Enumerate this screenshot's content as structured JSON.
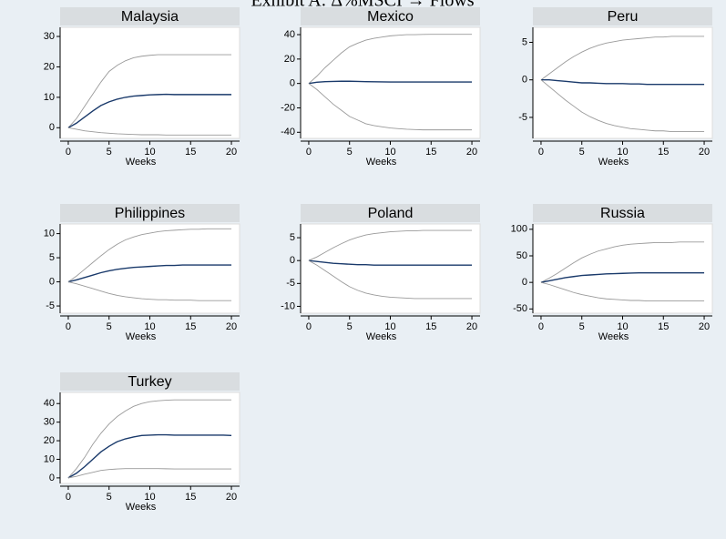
{
  "title": "Exhibit A: Δ%MSCI → Flows",
  "chart_data": [
    {
      "type": "line",
      "title": "Malaysia",
      "xlabel": "Weeks",
      "x": [
        0,
        1,
        2,
        3,
        4,
        5,
        6,
        7,
        8,
        9,
        10,
        11,
        12,
        13,
        14,
        15,
        16,
        17,
        18,
        19,
        20
      ],
      "xlim": [
        -1,
        21
      ],
      "xticks": [
        0,
        5,
        10,
        15,
        20
      ],
      "ylim": [
        -3.5,
        33
      ],
      "yticks": [
        0,
        10,
        20,
        30
      ],
      "series": [
        {
          "color": "#9a9a9a",
          "values": [
            0,
            3,
            7,
            11,
            15,
            18.5,
            20.5,
            22,
            23,
            23.5,
            23.8,
            24,
            24,
            24,
            24,
            24,
            24,
            24,
            24,
            24,
            24
          ]
        },
        {
          "color": "#1a3a6b",
          "values": [
            0,
            1.5,
            3.5,
            5.5,
            7.3,
            8.5,
            9.4,
            10,
            10.4,
            10.6,
            10.8,
            10.9,
            11,
            10.9,
            10.9,
            10.9,
            10.9,
            10.9,
            10.9,
            10.9,
            10.9
          ]
        },
        {
          "color": "#9a9a9a",
          "values": [
            0,
            -0.5,
            -1,
            -1.3,
            -1.6,
            -1.8,
            -2,
            -2.1,
            -2.2,
            -2.3,
            -2.3,
            -2.3,
            -2.4,
            -2.4,
            -2.4,
            -2.4,
            -2.4,
            -2.4,
            -2.4,
            -2.4,
            -2.4
          ]
        }
      ]
    },
    {
      "type": "line",
      "title": "Mexico",
      "xlabel": "Weeks",
      "x": [
        0,
        1,
        2,
        3,
        4,
        5,
        6,
        7,
        8,
        9,
        10,
        11,
        12,
        13,
        14,
        15,
        16,
        17,
        18,
        19,
        20
      ],
      "xlim": [
        -1,
        21
      ],
      "xticks": [
        0,
        5,
        10,
        15,
        20
      ],
      "ylim": [
        -45,
        46
      ],
      "yticks": [
        -40,
        -20,
        0,
        20,
        40
      ],
      "series": [
        {
          "color": "#9a9a9a",
          "values": [
            0,
            6,
            13,
            19,
            25,
            30,
            33,
            35.5,
            37,
            38,
            39,
            39.5,
            40,
            40,
            40.2,
            40.3,
            40.3,
            40.3,
            40.3,
            40.3,
            40.3
          ]
        },
        {
          "color": "#1a3a6b",
          "values": [
            0,
            1,
            1.5,
            1.7,
            1.8,
            1.8,
            1.7,
            1.5,
            1.4,
            1.3,
            1.2,
            1.2,
            1.2,
            1.2,
            1.2,
            1.2,
            1.2,
            1.2,
            1.2,
            1.2,
            1.2
          ]
        },
        {
          "color": "#9a9a9a",
          "values": [
            0,
            -5,
            -11,
            -17,
            -22,
            -27,
            -30,
            -33,
            -34.5,
            -35.5,
            -36.5,
            -37,
            -37.5,
            -37.8,
            -38,
            -38,
            -38,
            -38,
            -38,
            -38,
            -38
          ]
        }
      ]
    },
    {
      "type": "line",
      "title": "Peru",
      "xlabel": "Weeks",
      "x": [
        0,
        1,
        2,
        3,
        4,
        5,
        6,
        7,
        8,
        9,
        10,
        11,
        12,
        13,
        14,
        15,
        16,
        17,
        18,
        19,
        20
      ],
      "xlim": [
        -1,
        21
      ],
      "xticks": [
        0,
        5,
        10,
        15,
        20
      ],
      "ylim": [
        -7.8,
        7
      ],
      "yticks": [
        -5,
        0,
        5
      ],
      "series": [
        {
          "color": "#9a9a9a",
          "values": [
            0,
            0.8,
            1.6,
            2.4,
            3.1,
            3.7,
            4.2,
            4.6,
            4.9,
            5.1,
            5.3,
            5.4,
            5.5,
            5.6,
            5.7,
            5.7,
            5.8,
            5.8,
            5.8,
            5.8,
            5.8
          ]
        },
        {
          "color": "#1a3a6b",
          "values": [
            0,
            0,
            -0.1,
            -0.2,
            -0.3,
            -0.4,
            -0.4,
            -0.45,
            -0.5,
            -0.5,
            -0.5,
            -0.55,
            -0.55,
            -0.6,
            -0.6,
            -0.6,
            -0.6,
            -0.6,
            -0.6,
            -0.6,
            -0.6
          ]
        },
        {
          "color": "#9a9a9a",
          "values": [
            0,
            -0.9,
            -1.8,
            -2.7,
            -3.5,
            -4.3,
            -4.9,
            -5.4,
            -5.8,
            -6.1,
            -6.3,
            -6.5,
            -6.6,
            -6.7,
            -6.8,
            -6.8,
            -6.9,
            -6.9,
            -6.9,
            -6.9,
            -6.9
          ]
        }
      ]
    },
    {
      "type": "line",
      "title": "Philippines",
      "xlabel": "Weeks",
      "x": [
        0,
        1,
        2,
        3,
        4,
        5,
        6,
        7,
        8,
        9,
        10,
        11,
        12,
        13,
        14,
        15,
        16,
        17,
        18,
        19,
        20
      ],
      "xlim": [
        -1,
        21
      ],
      "xticks": [
        0,
        5,
        10,
        15,
        20
      ],
      "ylim": [
        -6.5,
        12
      ],
      "yticks": [
        -5,
        0,
        5,
        10
      ],
      "series": [
        {
          "color": "#9a9a9a",
          "values": [
            0,
            1.2,
            2.6,
            4,
            5.4,
            6.7,
            7.8,
            8.7,
            9.3,
            9.8,
            10.1,
            10.4,
            10.6,
            10.7,
            10.8,
            10.9,
            10.9,
            11,
            11,
            11,
            11
          ]
        },
        {
          "color": "#1a3a6b",
          "values": [
            0,
            0.4,
            0.9,
            1.4,
            1.9,
            2.3,
            2.6,
            2.8,
            3,
            3.1,
            3.2,
            3.3,
            3.4,
            3.4,
            3.5,
            3.5,
            3.5,
            3.5,
            3.5,
            3.5,
            3.5
          ]
        },
        {
          "color": "#9a9a9a",
          "values": [
            0,
            -0.4,
            -0.9,
            -1.4,
            -1.9,
            -2.4,
            -2.8,
            -3.1,
            -3.3,
            -3.5,
            -3.6,
            -3.7,
            -3.7,
            -3.8,
            -3.8,
            -3.8,
            -3.9,
            -3.9,
            -3.9,
            -3.9,
            -3.9
          ]
        }
      ]
    },
    {
      "type": "line",
      "title": "Poland",
      "xlabel": "Weeks",
      "x": [
        0,
        1,
        2,
        3,
        4,
        5,
        6,
        7,
        8,
        9,
        10,
        11,
        12,
        13,
        14,
        15,
        16,
        17,
        18,
        19,
        20
      ],
      "xlim": [
        -1,
        21
      ],
      "xticks": [
        0,
        5,
        10,
        15,
        20
      ],
      "ylim": [
        -11.5,
        8
      ],
      "yticks": [
        -10,
        -5,
        0,
        5
      ],
      "series": [
        {
          "color": "#9a9a9a",
          "values": [
            0,
            0.8,
            1.8,
            2.8,
            3.7,
            4.5,
            5.1,
            5.6,
            5.9,
            6.1,
            6.3,
            6.4,
            6.5,
            6.5,
            6.6,
            6.6,
            6.6,
            6.6,
            6.6,
            6.6,
            6.6
          ]
        },
        {
          "color": "#1a3a6b",
          "values": [
            0,
            -0.2,
            -0.4,
            -0.6,
            -0.7,
            -0.8,
            -0.9,
            -0.9,
            -1,
            -1,
            -1,
            -1,
            -1,
            -1,
            -1,
            -1,
            -1,
            -1,
            -1,
            -1,
            -1
          ]
        },
        {
          "color": "#9a9a9a",
          "values": [
            0,
            -1,
            -2.2,
            -3.4,
            -4.6,
            -5.7,
            -6.5,
            -7.1,
            -7.5,
            -7.8,
            -8,
            -8.1,
            -8.2,
            -8.3,
            -8.3,
            -8.3,
            -8.3,
            -8.3,
            -8.3,
            -8.3,
            -8.3
          ]
        }
      ]
    },
    {
      "type": "line",
      "title": "Russia",
      "xlabel": "Weeks",
      "x": [
        0,
        1,
        2,
        3,
        4,
        5,
        6,
        7,
        8,
        9,
        10,
        11,
        12,
        13,
        14,
        15,
        16,
        17,
        18,
        19,
        20
      ],
      "xlim": [
        -1,
        21
      ],
      "xticks": [
        0,
        5,
        10,
        15,
        20
      ],
      "ylim": [
        -58,
        110
      ],
      "yticks": [
        -50,
        0,
        50,
        100
      ],
      "series": [
        {
          "color": "#9a9a9a",
          "values": [
            0,
            8,
            17,
            27,
            37,
            46,
            53,
            59,
            63,
            67,
            70,
            72,
            73,
            74,
            75,
            75,
            75,
            76,
            76,
            76,
            76
          ]
        },
        {
          "color": "#1a3a6b",
          "values": [
            0,
            3,
            6,
            9,
            11,
            13,
            14,
            15,
            16,
            16.5,
            17,
            17.5,
            18,
            18,
            18,
            18,
            18,
            18,
            18,
            18,
            18
          ]
        },
        {
          "color": "#9a9a9a",
          "values": [
            0,
            -4,
            -9,
            -14,
            -19,
            -23,
            -26,
            -29,
            -31,
            -32,
            -33,
            -34,
            -34,
            -35,
            -35,
            -35,
            -35,
            -35,
            -35,
            -35,
            -35
          ]
        }
      ]
    },
    {
      "type": "line",
      "title": "Turkey",
      "xlabel": "Weeks",
      "x": [
        0,
        1,
        2,
        3,
        4,
        5,
        6,
        7,
        8,
        9,
        10,
        11,
        12,
        13,
        14,
        15,
        16,
        17,
        18,
        19,
        20
      ],
      "xlim": [
        -1,
        21
      ],
      "xticks": [
        0,
        5,
        10,
        15,
        20
      ],
      "ylim": [
        -3,
        46
      ],
      "yticks": [
        0,
        10,
        20,
        30,
        40
      ],
      "series": [
        {
          "color": "#9a9a9a",
          "values": [
            0,
            5,
            11,
            18,
            24,
            29,
            33,
            36,
            38.5,
            40,
            41,
            41.5,
            41.8,
            42,
            42,
            42,
            42,
            42,
            42,
            42,
            42
          ]
        },
        {
          "color": "#1a3a6b",
          "values": [
            0,
            2.5,
            6,
            10,
            14,
            17,
            19.5,
            21,
            22,
            22.8,
            23,
            23.2,
            23.2,
            23,
            23,
            23,
            23,
            23,
            23,
            23,
            22.8
          ]
        },
        {
          "color": "#9a9a9a",
          "values": [
            0,
            0.8,
            2,
            3,
            4,
            4.5,
            4.8,
            5,
            5,
            5,
            5,
            5,
            4.9,
            4.8,
            4.8,
            4.8,
            4.8,
            4.8,
            4.8,
            4.8,
            4.8
          ]
        }
      ]
    }
  ]
}
